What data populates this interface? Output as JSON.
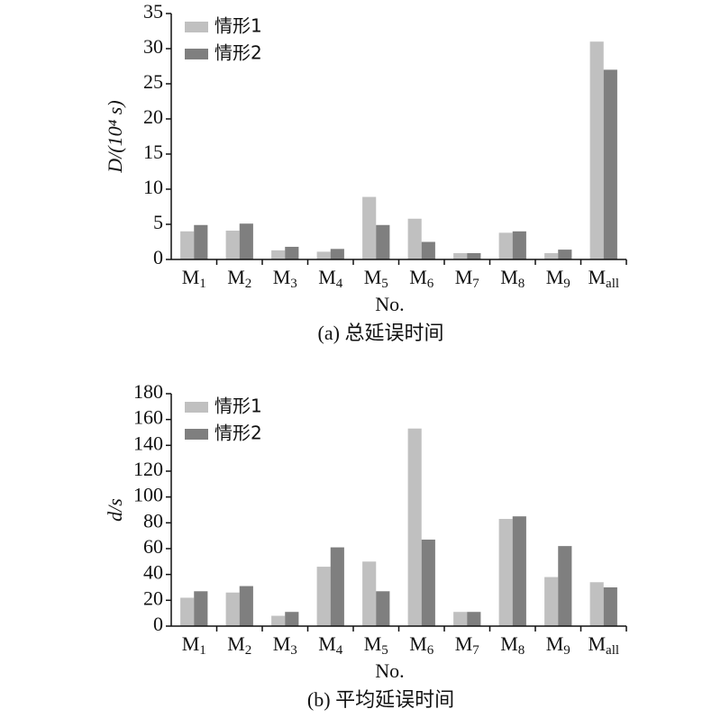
{
  "chart_data": [
    {
      "type": "bar",
      "caption": "(a) 总延误时间",
      "x_label": "No.",
      "y_label": "D/(10⁴ s)",
      "categories": [
        {
          "main": "M",
          "sub": "1"
        },
        {
          "main": "M",
          "sub": "2"
        },
        {
          "main": "M",
          "sub": "3"
        },
        {
          "main": "M",
          "sub": "4"
        },
        {
          "main": "M",
          "sub": "5"
        },
        {
          "main": "M",
          "sub": "6"
        },
        {
          "main": "M",
          "sub": "7"
        },
        {
          "main": "M",
          "sub": "8"
        },
        {
          "main": "M",
          "sub": "9"
        },
        {
          "main": "M",
          "sub": "all"
        }
      ],
      "series": [
        {
          "name": "情形1",
          "color": "#c0c0c0",
          "values": [
            4,
            4.1,
            1.3,
            1.1,
            8.9,
            5.8,
            0.9,
            3.8,
            0.9,
            31
          ]
        },
        {
          "name": "情形2",
          "color": "#7f7f7f",
          "values": [
            4.9,
            5.1,
            1.8,
            1.5,
            4.9,
            2.5,
            0.9,
            4,
            1.4,
            27
          ]
        }
      ],
      "ylim": [
        0,
        35
      ],
      "yticks": [
        0,
        5,
        10,
        15,
        20,
        25,
        30,
        35
      ],
      "legend": "upper left"
    },
    {
      "type": "bar",
      "caption": "(b) 平均延误时间",
      "x_label": "No.",
      "y_label": "d/s",
      "categories": [
        {
          "main": "M",
          "sub": "1"
        },
        {
          "main": "M",
          "sub": "2"
        },
        {
          "main": "M",
          "sub": "3"
        },
        {
          "main": "M",
          "sub": "4"
        },
        {
          "main": "M",
          "sub": "5"
        },
        {
          "main": "M",
          "sub": "6"
        },
        {
          "main": "M",
          "sub": "7"
        },
        {
          "main": "M",
          "sub": "8"
        },
        {
          "main": "M",
          "sub": "9"
        },
        {
          "main": "M",
          "sub": "all"
        }
      ],
      "series": [
        {
          "name": "情形1",
          "color": "#c0c0c0",
          "values": [
            22,
            26,
            8,
            46,
            50,
            153,
            11,
            83,
            38,
            34
          ]
        },
        {
          "name": "情形2",
          "color": "#7f7f7f",
          "values": [
            27,
            31,
            11,
            61,
            27,
            67,
            11,
            85,
            62,
            30
          ]
        }
      ],
      "ylim": [
        0,
        180
      ],
      "yticks": [
        0,
        20,
        40,
        60,
        80,
        100,
        120,
        140,
        160,
        180
      ],
      "legend": "upper left"
    }
  ]
}
